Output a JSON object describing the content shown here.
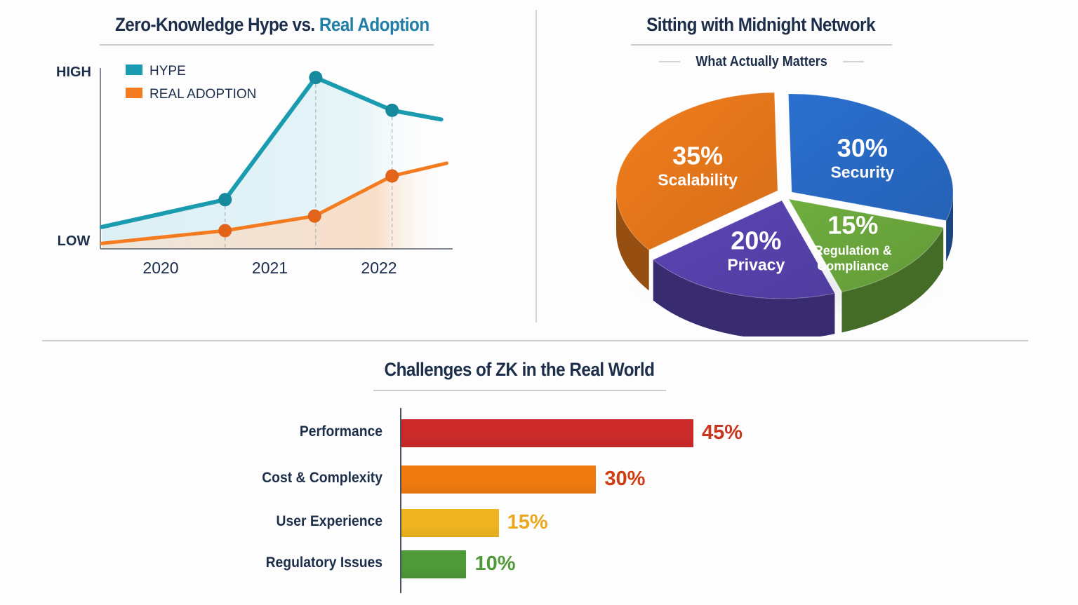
{
  "colors": {
    "navy": "#1c2e4a",
    "teal": "#1f7fa6",
    "hype": "#1a9bb0",
    "adoption": "#f47b20",
    "divider": "#cfd3d8"
  },
  "line_panel": {
    "title_part1": "Zero-Knowledge Hype vs.",
    "title_part2": "Real Adoption"
  },
  "pie_panel": {
    "title": "Sitting with Midnight Network",
    "subtitle": "What Actually Matters"
  },
  "bar_panel": {
    "title": "Challenges of ZK in the Real World"
  },
  "chart_data": [
    {
      "type": "line",
      "title": "Zero-Knowledge Hype vs. Real Adoption",
      "xlabel": "",
      "ylabel": "",
      "y_tick_labels": [
        "LOW",
        "HIGH"
      ],
      "ylim": [
        0,
        100
      ],
      "xlim": [
        2019.45,
        2022.7
      ],
      "x_tick_labels": [
        "2020",
        "2021",
        "2022"
      ],
      "x_ticks": [
        2020,
        2021,
        2022
      ],
      "legend": [
        "HYPE",
        "REAL ADOPTION"
      ],
      "legend_position": "top-left",
      "grid": false,
      "series": [
        {
          "name": "HYPE",
          "color": "#1a9bb0",
          "x": [
            2019.46,
            2020.59,
            2021.42,
            2022.12,
            2022.57
          ],
          "values": [
            12,
            27,
            94,
            76,
            71
          ],
          "markers": [
            false,
            true,
            true,
            true,
            false
          ]
        },
        {
          "name": "REAL ADOPTION",
          "color": "#f47b20",
          "x": [
            2019.46,
            2020.59,
            2021.41,
            2022.12,
            2022.62
          ],
          "values": [
            3,
            10,
            18,
            40,
            47
          ],
          "markers": [
            false,
            true,
            true,
            true,
            false
          ]
        }
      ],
      "guide_lines_at": [
        2020.59,
        2021.42,
        2022.12
      ]
    },
    {
      "type": "pie",
      "title": "Sitting with Midnight Network",
      "subtitle": "What Actually Matters",
      "style": "3d",
      "slices": [
        {
          "label": "Scalability",
          "value": 35,
          "display": "35%",
          "color": "#f27d1c"
        },
        {
          "label": "Security",
          "value": 30,
          "display": "30%",
          "color": "#2a6fcf"
        },
        {
          "label": "Regulation & Compliance",
          "value": 15,
          "display": "15%",
          "color": "#6fae3f"
        },
        {
          "label": "Privacy",
          "value": 20,
          "display": "20%",
          "color": "#5b45b5"
        }
      ]
    },
    {
      "type": "bar",
      "orientation": "horizontal",
      "title": "Challenges of ZK in the Real World",
      "xlim": [
        0,
        45
      ],
      "categories": [
        "Performance",
        "Cost & Complexity",
        "User Experience",
        "Regulatory Issues"
      ],
      "values": [
        45,
        30,
        15,
        10
      ],
      "value_labels": [
        "45%",
        "30%",
        "15%",
        "10%"
      ],
      "colors": [
        "#cc2a2a",
        "#f07a10",
        "#efb420",
        "#4f9a38"
      ],
      "label_colors": [
        "#c8361e",
        "#cf3d12",
        "#e8a820",
        "#4f9a38"
      ]
    }
  ]
}
